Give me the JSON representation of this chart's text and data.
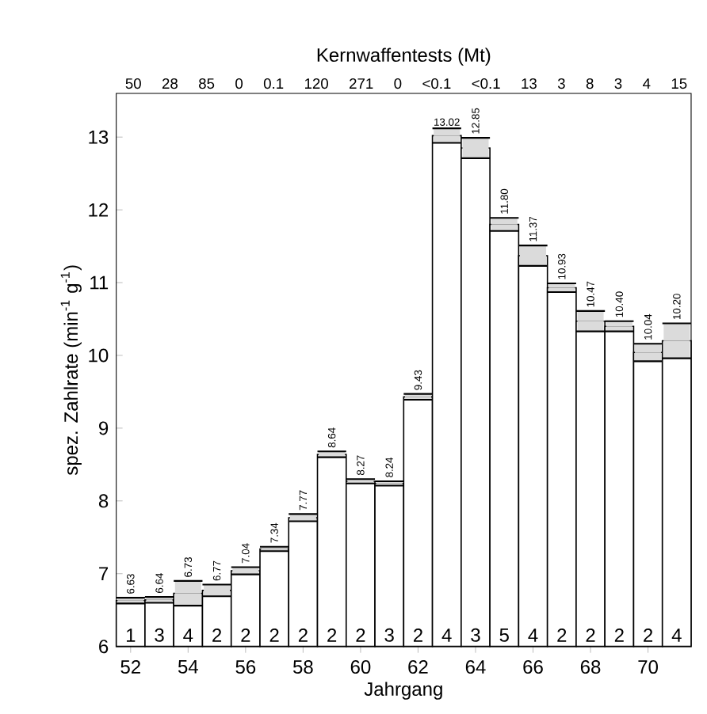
{
  "chart_data": {
    "type": "bar",
    "xlabel": "Jahrgang",
    "ylabel": "spez. Zahlrate (min$^{-1}$ g$^{-1}$)",
    "x": [
      1952,
      1953,
      1954,
      1955,
      1956,
      1957,
      1958,
      1959,
      1960,
      1961,
      1962,
      1963,
      1964,
      1965,
      1966,
      1967,
      1968,
      1969,
      1970,
      1971
    ],
    "values": [
      6.63,
      6.64,
      6.73,
      6.77,
      7.04,
      7.34,
      7.77,
      8.64,
      8.27,
      8.24,
      9.43,
      13.02,
      12.85,
      11.8,
      11.37,
      10.93,
      10.47,
      10.4,
      10.04,
      10.2
    ],
    "value_labels": [
      "6.63",
      "6.64",
      "6.73",
      "6.77",
      "7.04",
      "7.34",
      "7.77",
      "8.64",
      "8.27",
      "8.24",
      "9.43",
      "13.02",
      "12.85",
      "11.80",
      "11.37",
      "10.93",
      "10.47",
      "10.40",
      "10.04",
      "10.20"
    ],
    "errors": [
      0.04,
      0.04,
      0.17,
      0.08,
      0.05,
      0.03,
      0.05,
      0.04,
      0.03,
      0.03,
      0.04,
      0.1,
      0.14,
      0.09,
      0.14,
      0.06,
      0.14,
      0.07,
      0.12,
      0.24
    ],
    "color": "#ffffff",
    "xlim": [
      1951.5,
      1971.5
    ],
    "xticks": [
      {
        "value": 1952,
        "label": "52"
      },
      {
        "value": 1954,
        "label": "54"
      },
      {
        "value": 1956,
        "label": "56"
      },
      {
        "value": 1958,
        "label": "58"
      },
      {
        "value": 1960,
        "label": "60"
      },
      {
        "value": 1962,
        "label": "62"
      },
      {
        "value": 1964,
        "label": "64"
      },
      {
        "value": 1966,
        "label": "66"
      },
      {
        "value": 1968,
        "label": "68"
      },
      {
        "value": 1970,
        "label": "70"
      }
    ],
    "ylim": [
      6,
      13.6
    ],
    "yticks": [
      6,
      7,
      8,
      9,
      10,
      11,
      12,
      13
    ],
    "annotations": [
      "Kernwaffentests (Mt)",
      "50",
      "28",
      "85",
      "0",
      "0.1",
      "120",
      "271",
      "0",
      "<0.1",
      "<0.1",
      "13",
      "3",
      "8",
      "3",
      "4",
      "15",
      {
        "text": "1",
        "x": 1952,
        "y": 6
      },
      {
        "text": "3",
        "x": 1953,
        "y": 6
      },
      {
        "text": "4",
        "x": 1954,
        "y": 6
      },
      {
        "text": "2",
        "x": 1955,
        "y": 6
      },
      {
        "text": "2",
        "x": 1956,
        "y": 6
      },
      {
        "text": "2",
        "x": 1957,
        "y": 6
      },
      {
        "text": "2",
        "x": 1958,
        "y": 6
      },
      {
        "text": "2",
        "x": 1959,
        "y": 6
      },
      {
        "text": "2",
        "x": 1960,
        "y": 6
      },
      {
        "text": "3",
        "x": 1961,
        "y": 6
      },
      {
        "text": "2",
        "x": 1962,
        "y": 6
      },
      {
        "text": "4",
        "x": 1963,
        "y": 6
      },
      {
        "text": "3",
        "x": 1964,
        "y": 6
      },
      {
        "text": "5",
        "x": 1965,
        "y": 6
      },
      {
        "text": "4",
        "x": 1966,
        "y": 6
      },
      {
        "text": "2",
        "x": 1967,
        "y": 6
      },
      {
        "text": "2",
        "x": 1968,
        "y": 6
      },
      {
        "text": "2",
        "x": 1969,
        "y": 6
      },
      {
        "text": "2",
        "x": 1970,
        "y": 6
      },
      {
        "text": "4",
        "x": 1971,
        "y": 6
      }
    ]
  }
}
